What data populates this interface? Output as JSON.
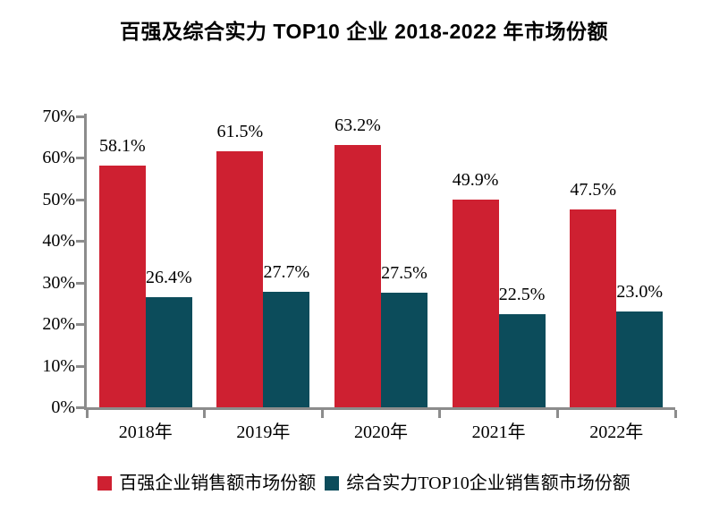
{
  "title": "百强及综合实力 TOP10 企业 2018-2022 年市场份额",
  "colors": {
    "series1": "#CE2031",
    "series2": "#0C4C5B",
    "axis": "#8C8C8C",
    "text": "#000000",
    "background": "#FFFFFF"
  },
  "chart_data": {
    "type": "bar",
    "title": "百强及综合实力 TOP10 企业 2018-2022 年市场份额",
    "categories": [
      "2018年",
      "2019年",
      "2020年",
      "2021年",
      "2022年"
    ],
    "series": [
      {
        "name": "百强企业销售额市场份额",
        "color": "#CE2031",
        "values": [
          58.1,
          61.5,
          63.2,
          49.9,
          47.5
        ],
        "labels": [
          "58.1%",
          "61.5%",
          "63.2%",
          "49.9%",
          "47.5%"
        ]
      },
      {
        "name": "综合实力TOP10企业销售额市场份额",
        "color": "#0C4C5B",
        "values": [
          26.4,
          27.7,
          27.5,
          22.5,
          23.0
        ],
        "labels": [
          "26.4%",
          "27.7%",
          "27.5%",
          "22.5%",
          "23.0%"
        ]
      }
    ],
    "xlabel": "",
    "ylabel": "",
    "ylim": [
      0,
      70
    ],
    "ytick_step": 10,
    "ytick_labels": [
      "0%",
      "10%",
      "20%",
      "30%",
      "40%",
      "50%",
      "60%",
      "70%"
    ],
    "grid": false,
    "legend_position": "bottom",
    "data_label_format": "percent"
  }
}
